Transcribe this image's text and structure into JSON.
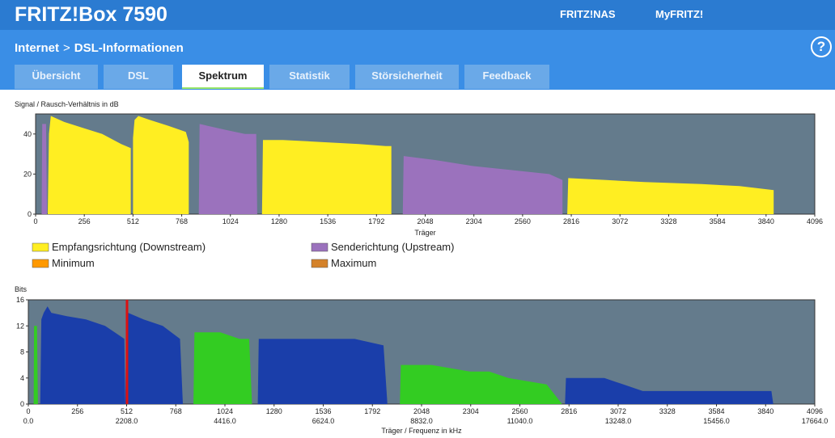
{
  "app": {
    "title": "FRITZ!Box 7590",
    "links": [
      "FRITZ!NAS",
      "MyFRITZ!"
    ]
  },
  "breadcrumb": {
    "parent": "Internet",
    "separator": ">",
    "current": "DSL-Informationen"
  },
  "help_icon": "?",
  "tabs": [
    {
      "label": "Übersicht",
      "active": false
    },
    {
      "label": "DSL",
      "active": false
    },
    {
      "label": "Spektrum",
      "active": true
    },
    {
      "label": "Statistik",
      "active": false
    },
    {
      "label": "Störsicherheit",
      "active": false
    },
    {
      "label": "Feedback",
      "active": false
    }
  ],
  "colors": {
    "downstream": "#ffee22",
    "upstream": "#9b72bd",
    "minimum": "#ff9900",
    "maximum": "#d4822a",
    "bits_down": "#1a3eaa",
    "bits_up": "#33cc22",
    "marker": "#dd1111",
    "plot_bg": "#647b8c"
  },
  "chart_data": [
    {
      "type": "area",
      "title": "Signal / Rausch-Verhältnis in dB",
      "xlabel": "Träger",
      "ylabel": "",
      "xlim": [
        0,
        4096
      ],
      "ylim": [
        0,
        50
      ],
      "x_ticks": [
        "0",
        "256",
        "512",
        "768",
        "1024",
        "1280",
        "1536",
        "1792",
        "2048",
        "2304",
        "2560",
        "2816",
        "3072",
        "3328",
        "3584",
        "3840",
        "4096"
      ],
      "y_ticks": [
        "0",
        "20",
        "40"
      ],
      "legend": [
        {
          "label": "Empfangsrichtung (Downstream)",
          "color": "#ffee22"
        },
        {
          "label": "Senderichtung (Upstream)",
          "color": "#9b72bd"
        },
        {
          "label": "Minimum",
          "color": "#ff9900"
        },
        {
          "label": "Maximum",
          "color": "#d4822a"
        }
      ],
      "series": [
        {
          "name": "Empfangsrichtung (Downstream)",
          "color": "#ffee22",
          "segments": [
            [
              [
                64,
                0
              ],
              [
                70,
                40
              ],
              [
                80,
                49
              ],
              [
                150,
                46
              ],
              [
                250,
                43
              ],
              [
                350,
                40
              ],
              [
                450,
                35
              ],
              [
                500,
                33
              ],
              [
                500,
                0
              ]
            ],
            [
              [
                512,
                0
              ],
              [
                512,
                38
              ],
              [
                520,
                47
              ],
              [
                540,
                49
              ],
              [
                600,
                47
              ],
              [
                700,
                44
              ],
              [
                790,
                41
              ],
              [
                805,
                36
              ],
              [
                805,
                0
              ]
            ],
            [
              [
                1190,
                0
              ],
              [
                1195,
                37
              ],
              [
                1300,
                37
              ],
              [
                1500,
                36
              ],
              [
                1700,
                35
              ],
              [
                1840,
                34
              ],
              [
                1870,
                34
              ],
              [
                1870,
                0
              ]
            ],
            [
              [
                2795,
                0
              ],
              [
                2800,
                18
              ],
              [
                3000,
                17
              ],
              [
                3200,
                16
              ],
              [
                3500,
                15
              ],
              [
                3700,
                14
              ],
              [
                3880,
                12
              ],
              [
                3880,
                0
              ]
            ]
          ]
        },
        {
          "name": "Senderichtung (Upstream)",
          "color": "#9b72bd",
          "segments": [
            [
              [
                32,
                0
              ],
              [
                35,
                45
              ],
              [
                55,
                45
              ],
              [
                60,
                0
              ]
            ],
            [
              [
                858,
                0
              ],
              [
                862,
                45
              ],
              [
                1000,
                42
              ],
              [
                1100,
                40
              ],
              [
                1160,
                40
              ],
              [
                1165,
                0
              ]
            ],
            [
              [
                1930,
                0
              ],
              [
                1935,
                29
              ],
              [
                2100,
                27
              ],
              [
                2300,
                24
              ],
              [
                2500,
                22
              ],
              [
                2700,
                20
              ],
              [
                2770,
                17
              ],
              [
                2770,
                0
              ]
            ]
          ]
        }
      ]
    },
    {
      "type": "area",
      "title": "Bits",
      "xlabel": "Träger / Frequenz in kHz",
      "ylabel": "",
      "xlim": [
        0,
        4096
      ],
      "ylim": [
        0,
        16
      ],
      "x_ticks": [
        "0",
        "256",
        "512",
        "768",
        "1024",
        "1280",
        "1536",
        "1792",
        "2048",
        "2304",
        "2560",
        "2816",
        "3072",
        "3328",
        "3584",
        "3840",
        "4096"
      ],
      "x_ticks_khz": [
        "0.0",
        "2208.0",
        "4416.0",
        "6624.0",
        "8832.0",
        "11040.0",
        "13248.0",
        "15456.0",
        "17664.0"
      ],
      "y_ticks": [
        "0",
        "4",
        "8",
        "12",
        "16"
      ],
      "marker_x": 514,
      "series": [
        {
          "name": "Downstream",
          "color": "#1a3eaa",
          "segments": [
            [
              [
                62,
                0
              ],
              [
                68,
                13
              ],
              [
                80,
                14
              ],
              [
                100,
                15
              ],
              [
                120,
                14
              ],
              [
                200,
                13.5
              ],
              [
                300,
                13
              ],
              [
                400,
                12
              ],
              [
                450,
                11
              ],
              [
                500,
                10
              ],
              [
                505,
                0
              ]
            ],
            [
              [
                505,
                0
              ],
              [
                510,
                10
              ],
              [
                520,
                14
              ],
              [
                600,
                13
              ],
              [
                700,
                12
              ],
              [
                790,
                10
              ],
              [
                805,
                0
              ]
            ],
            [
              [
                1195,
                0
              ],
              [
                1200,
                10
              ],
              [
                1300,
                10
              ],
              [
                1500,
                10
              ],
              [
                1700,
                10
              ],
              [
                1850,
                9
              ],
              [
                1870,
                0
              ]
            ],
            [
              [
                2795,
                0
              ],
              [
                2800,
                4
              ],
              [
                3000,
                4
              ],
              [
                3100,
                3
              ],
              [
                3200,
                2
              ],
              [
                3500,
                2
              ],
              [
                3870,
                2
              ],
              [
                3880,
                0
              ]
            ]
          ]
        },
        {
          "name": "Upstream",
          "color": "#33cc22",
          "segments": [
            [
              [
                28,
                0
              ],
              [
                30,
                12
              ],
              [
                45,
                12
              ],
              [
                50,
                0
              ]
            ],
            [
              [
                860,
                0
              ],
              [
                865,
                11
              ],
              [
                1000,
                11
              ],
              [
                1100,
                10
              ],
              [
                1150,
                10
              ],
              [
                1165,
                0
              ]
            ],
            [
              [
                1935,
                0
              ],
              [
                1940,
                6
              ],
              [
                2100,
                6
              ],
              [
                2300,
                5
              ],
              [
                2400,
                5
              ],
              [
                2500,
                4
              ],
              [
                2700,
                3
              ],
              [
                2780,
                0
              ]
            ]
          ]
        }
      ]
    }
  ]
}
